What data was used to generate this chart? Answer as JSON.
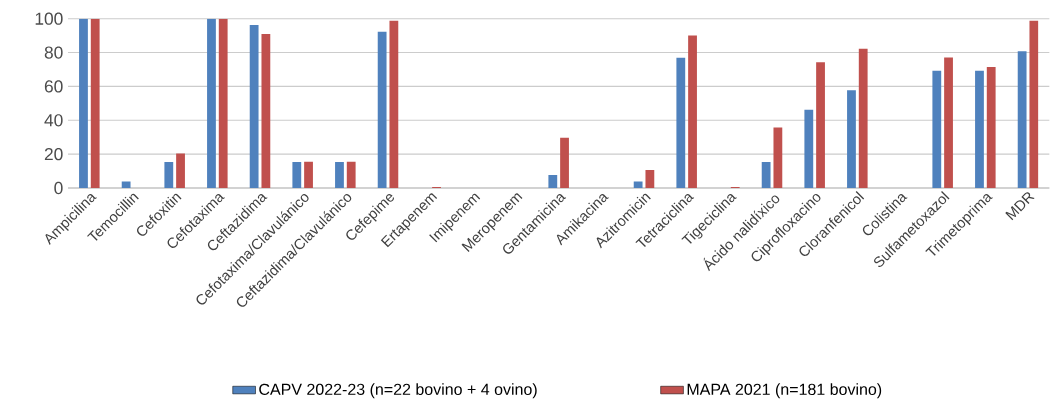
{
  "chart_data": {
    "type": "bar",
    "categories": [
      "Ampicilina",
      "Temocillin",
      "Cefoxitin",
      "Cefotaxima",
      "Ceftazidima",
      "Cefotaxima/Clavulánico",
      "Ceftazidima/Clavulánico",
      "Cefepime",
      "Ertapenem",
      "Imipenem",
      "Meropenem",
      "Gentamicina",
      "Amikacina",
      "Azitromicin",
      "Tetraciclina",
      "Tigeciclina",
      "Ácido nalidíxico",
      "Ciprofloxacino",
      "Cloranfenicol",
      "Colistina",
      "Sulfametoxazol",
      "Trimetoprima",
      "MDR"
    ],
    "series": [
      {
        "name": "CAPV 2022-23 (n=22 bovino + 4 ovino)",
        "color": "#4f81bd",
        "values": [
          100,
          3.8,
          15.4,
          100,
          96.2,
          15.4,
          15.4,
          92.3,
          0,
          0,
          0,
          7.7,
          0,
          3.8,
          76.9,
          0,
          15.4,
          46.2,
          57.7,
          0,
          69.2,
          69.2,
          80.8
        ]
      },
      {
        "name": "MAPA 2021 (n=181 bovino)",
        "color": "#c0504d",
        "values": [
          100,
          0,
          20.4,
          100,
          91,
          15.5,
          15.5,
          98.8,
          0.6,
          0,
          0,
          29.7,
          0,
          10.6,
          90,
          0.6,
          35.7,
          74.3,
          82.2,
          0,
          77,
          71.5,
          98.8
        ]
      }
    ],
    "ylim": [
      0,
      100
    ],
    "yticks": [
      0,
      20,
      40,
      60,
      80,
      100
    ],
    "grid": "y",
    "legend": "bottom"
  }
}
